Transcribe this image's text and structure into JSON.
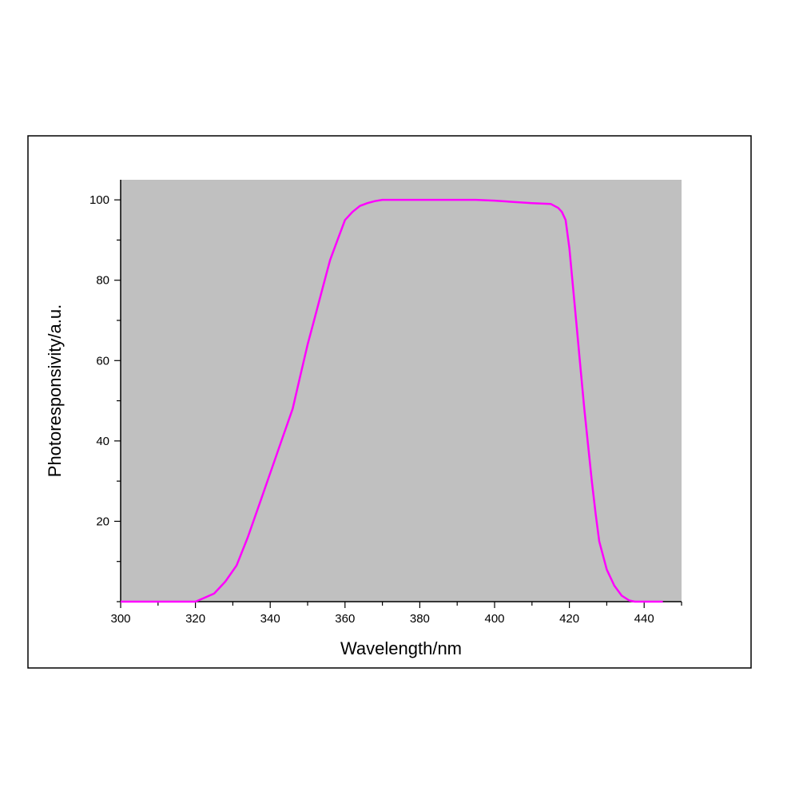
{
  "chart_data": {
    "type": "line",
    "xlabel": "Wavelength/nm",
    "ylabel": "Photoresponsivity/a.u.",
    "xlim": [
      300,
      450
    ],
    "ylim": [
      0,
      105
    ],
    "x_ticks": [
      300,
      320,
      340,
      360,
      380,
      400,
      420,
      440
    ],
    "y_ticks": [
      20,
      40,
      60,
      80,
      100
    ],
    "grid": false,
    "legend": "none",
    "colors": {
      "plot_background": "#c0c0c0",
      "line": "#ff00ff",
      "frame": "#000000"
    },
    "series": [
      {
        "x": [
          300,
          305,
          310,
          315,
          320,
          322,
          325,
          328,
          331,
          334,
          337,
          340,
          343,
          346,
          348,
          350,
          352,
          354,
          356,
          358,
          360,
          362,
          364,
          366,
          368,
          370,
          375,
          380,
          385,
          390,
          395,
          400,
          405,
          410,
          415,
          417,
          418,
          419,
          420,
          421,
          422,
          423,
          424,
          425,
          426,
          427,
          428,
          430,
          432,
          434,
          436,
          437.5,
          440,
          445
        ],
        "y": [
          0,
          0,
          0,
          0,
          0,
          0.8,
          2,
          5,
          9,
          16,
          24,
          32,
          40,
          48,
          56,
          64,
          71,
          78,
          85,
          90,
          95,
          97,
          98.5,
          99.2,
          99.7,
          100,
          100,
          100,
          100,
          100,
          100,
          99.8,
          99.5,
          99.2,
          99,
          98,
          97,
          95,
          88,
          78,
          68,
          58,
          48,
          39,
          30,
          22,
          15,
          8,
          4,
          1.5,
          0.3,
          0,
          0,
          0
        ]
      }
    ]
  }
}
